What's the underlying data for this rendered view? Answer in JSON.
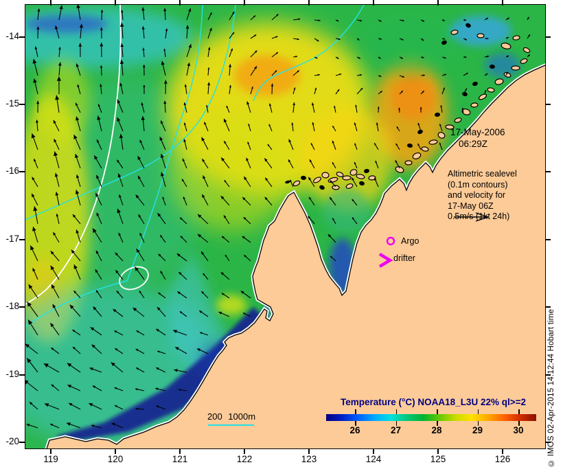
{
  "map": {
    "region": "Northwest Australia (Broome / King Sound / Kimberley coast)",
    "lon_axis_ticks": [
      "119",
      "120",
      "121",
      "122",
      "123",
      "124",
      "125",
      "126"
    ],
    "lat_axis_ticks": [
      "-14",
      "-15",
      "-16",
      "-17",
      "-18",
      "-19",
      "-20"
    ],
    "lon_range_deg_east": [
      118.6,
      126.7
    ],
    "lat_range_deg": [
      -20.1,
      -13.5
    ]
  },
  "annotations": {
    "datetime_line1": "17-May-2006",
    "datetime_line2": "06:29Z",
    "altimetry_note_lines": [
      "Altimetric sealevel",
      "(0.1m contours)",
      "and velocity for",
      "17-May 06Z",
      "0.5m/s (1kt 24h)"
    ],
    "scale_label": "200 1000m",
    "credit": "© IMOS 02-Apr-2015 14:12:44 Hobart time"
  },
  "markers": {
    "argo_label": "Argo",
    "drifter_label": "drifter",
    "marker_color": "#EE00EE"
  },
  "colorbar": {
    "title": "Temperature (°C) NOAA18_L3U 22% ql>=2",
    "title_color": "#000080",
    "tick_labels": [
      "26",
      "27",
      "28",
      "29",
      "30"
    ],
    "value_range_c": [
      25.3,
      30.45
    ],
    "gradient": [
      "#000080",
      "#0020c8",
      "#0060ff",
      "#00aaff",
      "#00e0e0",
      "#00c878",
      "#00b432",
      "#64c800",
      "#c8dc00",
      "#ffe100",
      "#ffaa00",
      "#ff6400",
      "#d22d00",
      "#8c1000"
    ]
  },
  "colors": {
    "land": "#fccb98",
    "ocean_base": "#17b33c",
    "coast_outline": "#000000",
    "coast_halo": "#ffffff",
    "bathymetry_contour": "#22e2ea",
    "sealevel_contour": "#ffffff",
    "arrow": "#000000"
  }
}
